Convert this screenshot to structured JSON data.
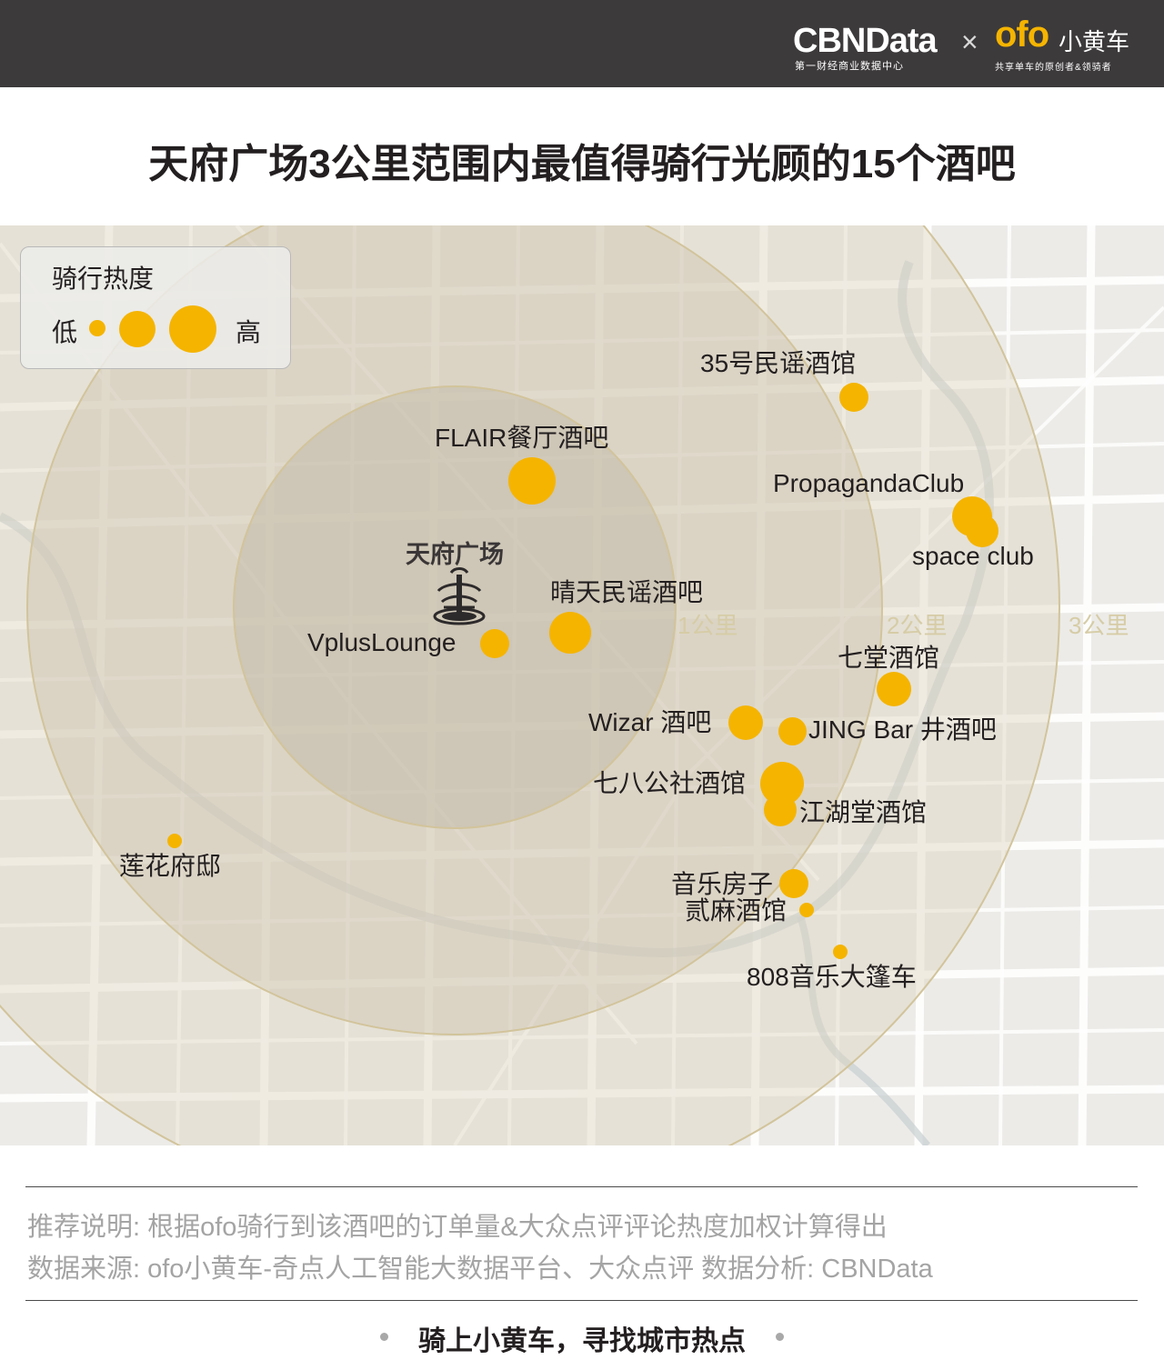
{
  "header": {
    "cbn_logo": "CBNData",
    "cbn_tagline": "第一财经商业数据中心",
    "separator": "×",
    "ofo_logo": "ofo",
    "ofo_name": "小黄车",
    "ofo_tagline": "共享单车的原创者&领骑者"
  },
  "title": "天府广场3公里范围内最值得骑行光顾的15个酒吧",
  "legend": {
    "title": "骑行热度",
    "low": "低",
    "high": "高",
    "levels": [
      "small",
      "medium",
      "large"
    ]
  },
  "map": {
    "center_name": "天府广场",
    "center_icon": "fountain-icon",
    "rings": [
      "1公里",
      "2公里",
      "3公里"
    ],
    "dot_color": "#f5b400",
    "pois": [
      {
        "name": "35号民谣酒馆",
        "heat": "medium"
      },
      {
        "name": "FLAIR餐厅酒吧",
        "heat": "large"
      },
      {
        "name": "PropagandaClub",
        "heat": "large"
      },
      {
        "name": "space club",
        "heat": "medium"
      },
      {
        "name": "晴天民谣酒吧",
        "heat": "large"
      },
      {
        "name": "VplusLounge",
        "heat": "medium"
      },
      {
        "name": "七堂酒馆",
        "heat": "medium"
      },
      {
        "name": "Wizar 酒吧",
        "heat": "medium"
      },
      {
        "name": "JING Bar 井酒吧",
        "heat": "medium"
      },
      {
        "name": "七八公社酒馆",
        "heat": "large"
      },
      {
        "name": "江湖堂酒馆",
        "heat": "medium"
      },
      {
        "name": "莲花府邸",
        "heat": "small"
      },
      {
        "name": "音乐房子",
        "heat": "medium"
      },
      {
        "name": "贰麻酒馆",
        "heat": "small"
      },
      {
        "name": "808音乐大篷车",
        "heat": "small"
      }
    ]
  },
  "footer": {
    "note": "推荐说明: 根据ofo骑行到该酒吧的订单量&大众点评评论热度加权计算得出",
    "source": "数据来源: ofo小黄车-奇点人工智能大数据平台、大众点评     数据分析: CBNData",
    "slogan": "骑上小黄车，寻找城市热点"
  }
}
